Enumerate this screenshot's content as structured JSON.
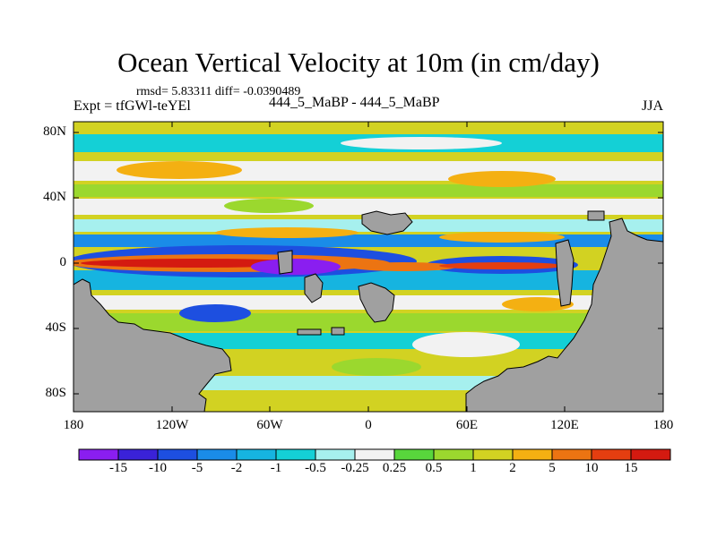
{
  "title": "Ocean Vertical Velocity at 10m (in cm/day)",
  "stats": "rmsd= 5.83311 diff= -0.0390489",
  "expt": "Expt = tfGWl-teYEl",
  "case_id": "444_5_MaBP - 444_5_MaBP",
  "season": "JJA",
  "lat_labels": [
    "80N",
    "40N",
    "0",
    "40S",
    "80S"
  ],
  "lon_labels": [
    "180",
    "120W",
    "60W",
    "0",
    "60E",
    "120E",
    "180"
  ],
  "colorbar": {
    "labels": [
      "-15",
      "-10",
      "-5",
      "-2",
      "-1",
      "-0.5",
      "-0.25",
      "0.25",
      "0.5",
      "1",
      "2",
      "5",
      "10",
      "15"
    ],
    "colors": [
      "#8a1ef0",
      "#3a22d8",
      "#1d4fe0",
      "#1a8ce8",
      "#16b4e0",
      "#14d0d6",
      "#a6f0ee",
      "#f2f2f2",
      "#58d63c",
      "#9bd82e",
      "#d2d222",
      "#f4b012",
      "#ec7412",
      "#e43e10",
      "#d41a10"
    ]
  },
  "land_color": "#a0a0a0"
}
